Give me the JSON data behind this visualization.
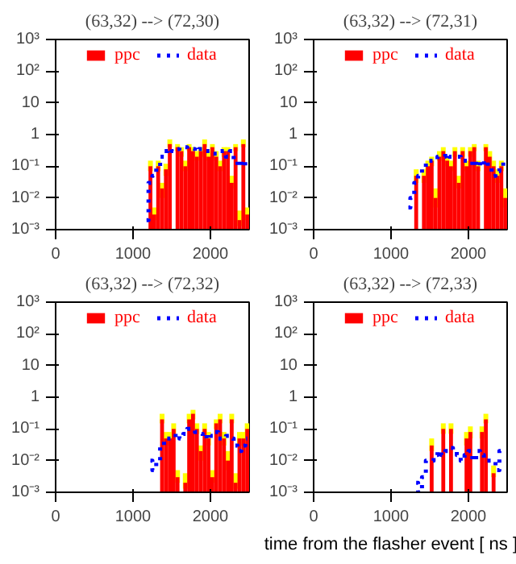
{
  "chart_data": [
    {
      "type": "histogram",
      "title": "(63,32) --> (72,30)",
      "bins": [
        1100,
        1150,
        1200,
        1250,
        1300,
        1350,
        1400,
        1450,
        1500,
        1550,
        1600,
        1650,
        1700,
        1750,
        1800,
        1850,
        1900,
        1950,
        2000,
        2050,
        2100,
        2150,
        2200,
        2250,
        2300,
        2350,
        2400,
        2450,
        2500
      ],
      "log": "y",
      "xlim": [
        0,
        2500
      ],
      "ylim": [
        0.001,
        1000
      ],
      "xticks": [
        0,
        1000,
        2000
      ],
      "yticks": [
        {
          "value": 0.001,
          "label": "10⁻³"
        },
        {
          "value": 0.01,
          "label": "10⁻²"
        },
        {
          "value": 0.1,
          "label": "10⁻¹"
        },
        1,
        10,
        {
          "value": 100,
          "label": "10²"
        },
        {
          "value": 1000,
          "label": "10³"
        }
      ],
      "legend": "top",
      "grid": false,
      "series": [
        {
          "name": "ppc",
          "color": "#ff0000",
          "values": [
            null,
            null,
            0.1,
            0.003,
            0.1,
            0.02,
            0.08,
            0.5,
            null,
            0.4,
            0.3,
            0.1,
            0.4,
            0.3,
            0.2,
            0.3,
            0.5,
            0.2,
            0.4,
            0.2,
            0.1,
            0.3,
            0.3,
            0.03,
            0.4,
            0.002,
            0.5,
            0.003
          ],
          "errors": [
            null,
            null,
            [
              0.07,
              0.15
            ],
            [
              0.002,
              0.005
            ],
            [
              0.07,
              0.15
            ],
            [
              0.01,
              0.03
            ],
            [
              0.05,
              0.12
            ],
            [
              0.4,
              0.7
            ],
            null,
            [
              0.3,
              0.5
            ],
            [
              0.2,
              0.4
            ],
            [
              0.07,
              0.15
            ],
            [
              0.3,
              0.5
            ],
            [
              0.2,
              0.4
            ],
            [
              0.15,
              0.3
            ],
            [
              0.2,
              0.4
            ],
            [
              0.4,
              0.7
            ],
            [
              0.15,
              0.3
            ],
            [
              0.3,
              0.5
            ],
            [
              0.15,
              0.3
            ],
            [
              0.07,
              0.15
            ],
            [
              0.2,
              0.4
            ],
            [
              0.2,
              0.4
            ],
            [
              0.02,
              0.05
            ],
            [
              0.3,
              0.5
            ],
            [
              0.0013,
              0.004
            ],
            [
              0.4,
              0.7
            ],
            [
              0.002,
              0.005
            ]
          ]
        },
        {
          "name": "data",
          "color": "#0000ff",
          "type": "step",
          "line_style": "dotted",
          "x": [
            1175,
            1225,
            1275,
            1325,
            1375,
            1425,
            1475,
            1525,
            1575,
            1625,
            1675,
            1725,
            1775,
            1825,
            1875,
            1925,
            1975,
            2025,
            2075,
            2125,
            2175,
            2225,
            2275,
            2325,
            2375,
            2425,
            2475
          ],
          "values": [
            0.002,
            0.03,
            0.05,
            0.1,
            0.2,
            0.3,
            0.35,
            0.3,
            0.35,
            0.4,
            0.4,
            0.35,
            0.35,
            0.3,
            0.35,
            0.3,
            0.3,
            0.25,
            0.25,
            0.3,
            0.3,
            0.2,
            0.3,
            0.15,
            0.1,
            0.15,
            0.1
          ]
        }
      ]
    },
    {
      "type": "histogram",
      "title": "(63,32) --> (72,31)",
      "bins": [
        1100,
        1150,
        1200,
        1250,
        1300,
        1350,
        1400,
        1450,
        1500,
        1550,
        1600,
        1650,
        1700,
        1750,
        1800,
        1850,
        1900,
        1950,
        2000,
        2050,
        2100,
        2150,
        2200,
        2250,
        2300,
        2350,
        2400,
        2450,
        2500
      ],
      "log": "y",
      "xlim": [
        0,
        2500
      ],
      "ylim": [
        0.001,
        1000
      ],
      "xticks": [
        0,
        1000,
        2000
      ],
      "yticks": [
        {
          "value": 0.001,
          "label": "10⁻³"
        },
        {
          "value": 0.01,
          "label": "10⁻²"
        },
        {
          "value": 0.1,
          "label": "10⁻¹"
        },
        1,
        10,
        {
          "value": 100,
          "label": "10²"
        },
        {
          "value": 1000,
          "label": "10³"
        }
      ],
      "legend": "top",
      "grid": false,
      "series": [
        {
          "name": "ppc",
          "color": "#ff0000",
          "values": [
            null,
            null,
            null,
            null,
            0.05,
            null,
            0.05,
            0.1,
            0.15,
            0.01,
            0.2,
            0.3,
            0.15,
            0.1,
            0.3,
            0.03,
            0.3,
            0.1,
            0.3,
            0.4,
            0.1,
            null,
            0.4,
            0.2,
            0.1,
            0.05,
            0.1,
            0.01
          ],
          "errors": [
            null,
            null,
            null,
            null,
            [
              0.03,
              0.08
            ],
            null,
            [
              0.03,
              0.08
            ],
            [
              0.07,
              0.15
            ],
            [
              0.1,
              0.2
            ],
            [
              0.005,
              0.02
            ],
            [
              0.15,
              0.3
            ],
            [
              0.2,
              0.4
            ],
            [
              0.1,
              0.2
            ],
            [
              0.07,
              0.15
            ],
            [
              0.2,
              0.4
            ],
            [
              0.02,
              0.05
            ],
            [
              0.2,
              0.4
            ],
            [
              0.07,
              0.15
            ],
            [
              0.2,
              0.4
            ],
            [
              0.3,
              0.5
            ],
            [
              0.07,
              0.15
            ],
            null,
            [
              0.3,
              0.5
            ],
            [
              0.15,
              0.3
            ],
            [
              0.07,
              0.15
            ],
            [
              0.03,
              0.08
            ],
            [
              0.07,
              0.15
            ],
            [
              0.005,
              0.02
            ]
          ]
        },
        {
          "name": "data",
          "color": "#0000ff",
          "type": "step",
          "line_style": "dotted",
          "x": [
            1225,
            1275,
            1325,
            1375,
            1425,
            1475,
            1525,
            1575,
            1625,
            1675,
            1725,
            1775,
            1825,
            1875,
            1925,
            1975,
            2025,
            2075,
            2125,
            2175,
            2225,
            2275,
            2325,
            2375,
            2425,
            2475
          ],
          "values": [
            0.005,
            0.01,
            0.03,
            0.05,
            0.08,
            0.15,
            0.15,
            0.15,
            0.2,
            0.2,
            0.25,
            0.2,
            0.2,
            0.2,
            0.15,
            0.15,
            0.15,
            0.1,
            0.15,
            0.1,
            0.15,
            0.1,
            0.05,
            0.07,
            0.1,
            0.15
          ]
        }
      ]
    },
    {
      "type": "histogram",
      "title": "(63,32) --> (72,32)",
      "bins": [
        1100,
        1150,
        1200,
        1250,
        1300,
        1350,
        1400,
        1450,
        1500,
        1550,
        1600,
        1650,
        1700,
        1750,
        1800,
        1850,
        1900,
        1950,
        2000,
        2050,
        2100,
        2150,
        2200,
        2250,
        2300,
        2350,
        2400,
        2450,
        2500
      ],
      "log": "y",
      "xlim": [
        0,
        2500
      ],
      "ylim": [
        0.001,
        1000
      ],
      "xticks": [
        0,
        1000,
        2000
      ],
      "yticks": [
        {
          "value": 0.001,
          "label": "10⁻³"
        },
        {
          "value": 0.01,
          "label": "10⁻²"
        },
        {
          "value": 0.1,
          "label": "10⁻¹"
        },
        1,
        10,
        {
          "value": 100,
          "label": "10²"
        },
        {
          "value": 1000,
          "label": "10³"
        }
      ],
      "legend": "top",
      "grid": false,
      "series": [
        {
          "name": "ppc",
          "color": "#ff0000",
          "values": [
            null,
            null,
            null,
            null,
            null,
            0.2,
            0.05,
            0.05,
            0.1,
            0.003,
            null,
            0.002,
            0.2,
            0.3,
            0.1,
            0.02,
            0.1,
            0.05,
            0.003,
            0.15,
            0.2,
            0.05,
            0.01,
            0.2,
            0.002,
            0.05,
            0.05,
            0.1
          ],
          "errors": [
            null,
            null,
            null,
            null,
            null,
            [
              0.15,
              0.3
            ],
            [
              0.03,
              0.08
            ],
            [
              0.03,
              0.08
            ],
            [
              0.07,
              0.15
            ],
            [
              0.002,
              0.005
            ],
            null,
            [
              0.0013,
              0.004
            ],
            [
              0.15,
              0.3
            ],
            [
              0.2,
              0.4
            ],
            [
              0.07,
              0.15
            ],
            [
              0.01,
              0.03
            ],
            [
              0.07,
              0.15
            ],
            [
              0.03,
              0.08
            ],
            [
              0.002,
              0.005
            ],
            [
              0.1,
              0.2
            ],
            [
              0.15,
              0.3
            ],
            [
              0.03,
              0.08
            ],
            [
              0.005,
              0.02
            ],
            [
              0.15,
              0.3
            ],
            [
              0.0013,
              0.004
            ],
            [
              0.03,
              0.08
            ],
            [
              0.03,
              0.08
            ],
            [
              0.07,
              0.15
            ]
          ]
        },
        {
          "name": "data",
          "color": "#0000ff",
          "type": "step",
          "line_style": "dotted",
          "x": [
            1225,
            1275,
            1325,
            1375,
            1425,
            1475,
            1525,
            1575,
            1625,
            1675,
            1725,
            1775,
            1825,
            1875,
            1925,
            1975,
            2025,
            2075,
            2125,
            2175,
            2225,
            2275,
            2325,
            2375,
            2425,
            2475
          ],
          "values": [
            0.01,
            0.005,
            0.01,
            0.03,
            0.05,
            0.05,
            0.05,
            0.07,
            0.05,
            0.07,
            0.1,
            0.1,
            0.08,
            0.07,
            0.05,
            0.07,
            0.06,
            0.08,
            0.05,
            0.05,
            0.06,
            0.05,
            0.03,
            0.02,
            0.03,
            0.05
          ]
        }
      ]
    },
    {
      "type": "histogram",
      "title": "(63,32) --> (72,33)",
      "xlabel": "time from the flasher event [ ns ]",
      "bins": [
        1100,
        1150,
        1200,
        1250,
        1300,
        1350,
        1400,
        1450,
        1500,
        1550,
        1600,
        1650,
        1700,
        1750,
        1800,
        1850,
        1900,
        1950,
        2000,
        2050,
        2100,
        2150,
        2200,
        2250,
        2300,
        2350,
        2400,
        2450,
        2500
      ],
      "log": "y",
      "xlim": [
        0,
        2500
      ],
      "ylim": [
        0.001,
        1000
      ],
      "xticks": [
        0,
        1000,
        2000
      ],
      "yticks": [
        {
          "value": 0.001,
          "label": "10⁻³"
        },
        {
          "value": 0.01,
          "label": "10⁻²"
        },
        {
          "value": 0.1,
          "label": "10⁻¹"
        },
        1,
        10,
        {
          "value": 100,
          "label": "10²"
        },
        {
          "value": 1000,
          "label": "10³"
        }
      ],
      "legend": "top",
      "grid": false,
      "series": [
        {
          "name": "ppc",
          "color": "#ff0000",
          "values": [
            null,
            null,
            null,
            null,
            null,
            null,
            null,
            null,
            0.03,
            null,
            null,
            0.1,
            null,
            0.1,
            null,
            null,
            null,
            0.05,
            0.08,
            null,
            null,
            0.08,
            0.2,
            null,
            0.004,
            null,
            null,
            null
          ],
          "errors": [
            null,
            null,
            null,
            null,
            null,
            null,
            null,
            null,
            [
              0.02,
              0.05
            ],
            null,
            null,
            [
              0.07,
              0.15
            ],
            null,
            [
              0.07,
              0.15
            ],
            null,
            null,
            null,
            [
              0.03,
              0.08
            ],
            [
              0.05,
              0.12
            ],
            null,
            null,
            [
              0.05,
              0.12
            ],
            [
              0.15,
              0.3
            ],
            null,
            [
              0.003,
              0.007
            ],
            null,
            null,
            null
          ]
        },
        {
          "name": "data",
          "color": "#0000ff",
          "type": "step",
          "line_style": "dotted",
          "x": [
            1325,
            1375,
            1425,
            1475,
            1525,
            1575,
            1625,
            1675,
            1725,
            1775,
            1825,
            1875,
            1925,
            1975,
            2025,
            2075,
            2125,
            2175,
            2225,
            2275,
            2325,
            2375,
            2425,
            2475
          ],
          "values": [
            0.002,
            0.001,
            0.003,
            0.01,
            0.01,
            0.015,
            0.02,
            0.015,
            0.02,
            0.025,
            0.02,
            0.015,
            0.01,
            0.015,
            0.02,
            0.01,
            0.02,
            0.015,
            0.01,
            0.01,
            0.01,
            0.005,
            0.02,
            0.02
          ]
        }
      ]
    }
  ]
}
